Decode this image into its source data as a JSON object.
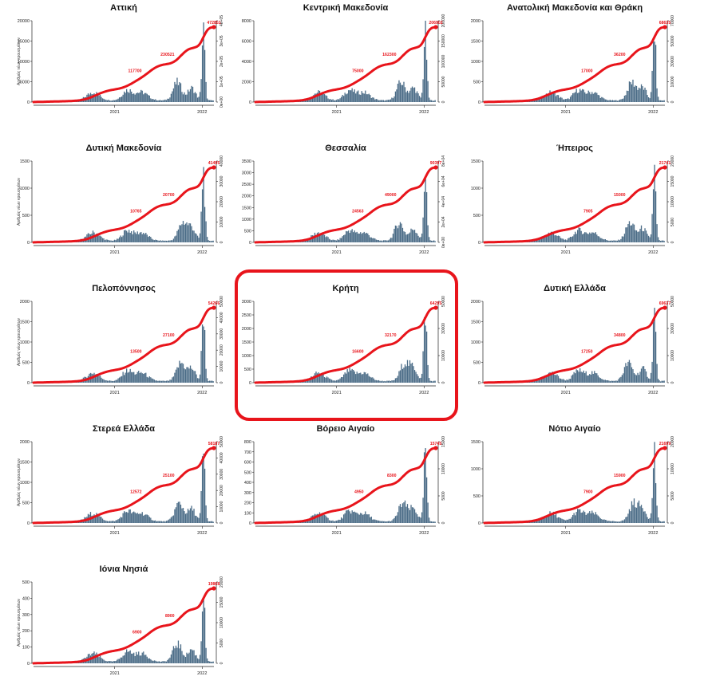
{
  "colors": {
    "cumulative_line": "#e8141b",
    "daily_bars": "#4b6c87",
    "highlight": "#e8141b",
    "axis": "#222222"
  },
  "highlighted_region": "Κρήτη",
  "chart_data": [
    {
      "type": "bar",
      "title": "Αττική",
      "ylabel": "Αριθμός νέων κρουσμάτων",
      "x_ticks": [
        "2021",
        "2022"
      ],
      "ylim_left": [
        0,
        20000
      ],
      "left_ticks": [
        "0",
        "5000",
        "10000",
        "15000",
        "20000"
      ],
      "right_ticks": [
        "0e+00",
        "1e+05",
        "2e+05",
        "3e+05",
        "4e+05"
      ],
      "annotations": [
        "117700",
        "230521",
        "472851"
      ],
      "final_cumulative": 472851
    },
    {
      "type": "bar",
      "title": "Κεντρική Μακεδονία",
      "ylabel": "",
      "x_ticks": [
        "2021",
        "2022"
      ],
      "ylim_left": [
        0,
        8000
      ],
      "left_ticks": [
        "0",
        "2000",
        "4000",
        "6000",
        "8000"
      ],
      "right_ticks": [
        "0",
        "50000",
        "100000",
        "150000",
        "200000"
      ],
      "annotations": [
        "75000",
        "162300",
        "206902"
      ],
      "final_cumulative": 206902
    },
    {
      "type": "bar",
      "title": "Ανατολική Μακεδονία και Θράκη",
      "ylabel": "",
      "x_ticks": [
        "2021",
        "2022"
      ],
      "ylim_left": [
        0,
        2000
      ],
      "left_ticks": [
        "0",
        "500",
        "1000",
        "1500",
        "2000"
      ],
      "right_ticks": [
        "0",
        "10000",
        "30000",
        "50000",
        "70000"
      ],
      "annotations": [
        "17000",
        "36200",
        "68635"
      ],
      "final_cumulative": 68635
    },
    {
      "type": "bar",
      "title": "Δυτική Μακεδονία",
      "ylabel": "Αριθμός νέων κρουσμάτων",
      "x_ticks": [
        "2021",
        "2022"
      ],
      "ylim_left": [
        0,
        1500
      ],
      "left_ticks": [
        "0",
        "500",
        "1000",
        "1500"
      ],
      "right_ticks": [
        "0",
        "10000",
        "20000",
        "30000",
        "40000"
      ],
      "annotations": [
        "10765",
        "20700",
        "41495"
      ],
      "final_cumulative": 41495
    },
    {
      "type": "bar",
      "title": "Θεσσαλία",
      "ylabel": "",
      "x_ticks": [
        "2021",
        "2022"
      ],
      "ylim_left": [
        0,
        3500
      ],
      "left_ticks": [
        "0",
        "500",
        "1000",
        "1500",
        "2000",
        "2500",
        "3000",
        "3500"
      ],
      "right_ticks": [
        "0e+00",
        "2e+04",
        "4e+04",
        "6e+04",
        "8e+04"
      ],
      "annotations": [
        "24563",
        "49000",
        "90397"
      ],
      "final_cumulative": 90397
    },
    {
      "type": "bar",
      "title": "Ήπειρος",
      "ylabel": "",
      "x_ticks": [
        "2021",
        "2022"
      ],
      "ylim_left": [
        0,
        1500
      ],
      "left_ticks": [
        "0",
        "500",
        "1000",
        "1500"
      ],
      "right_ticks": [
        "0",
        "5000",
        "10000",
        "15000",
        "20000"
      ],
      "annotations": [
        "7905",
        "15000",
        "21741"
      ],
      "final_cumulative": 21741
    },
    {
      "type": "bar",
      "title": "Πελοπόννησος",
      "ylabel": "Αριθμός νέων κρουσμάτων",
      "x_ticks": [
        "2021",
        "2022"
      ],
      "ylim_left": [
        0,
        2000
      ],
      "left_ticks": [
        "0",
        "500",
        "1000",
        "1500",
        "2000"
      ],
      "right_ticks": [
        "0",
        "10000",
        "20000",
        "30000",
        "40000",
        "50000"
      ],
      "annotations": [
        "13500",
        "27100",
        "54266"
      ],
      "final_cumulative": 54266
    },
    {
      "type": "bar",
      "title": "Κρήτη",
      "ylabel": "",
      "x_ticks": [
        "2021",
        "2022"
      ],
      "ylim_left": [
        0,
        3000
      ],
      "left_ticks": [
        "0",
        "500",
        "1000",
        "1500",
        "2000",
        "2500",
        "3000"
      ],
      "right_ticks": [
        "0",
        "10000",
        "30000",
        "50000"
      ],
      "annotations": [
        "16600",
        "32170",
        "64295"
      ],
      "final_cumulative": 64295
    },
    {
      "type": "bar",
      "title": "Δυτική Ελλάδα",
      "ylabel": "",
      "x_ticks": [
        "2021",
        "2022"
      ],
      "ylim_left": [
        0,
        2000
      ],
      "left_ticks": [
        "0",
        "500",
        "1000",
        "1500",
        "2000"
      ],
      "right_ticks": [
        "0",
        "10000",
        "30000",
        "50000"
      ],
      "annotations": [
        "17250",
        "34800",
        "69637"
      ],
      "final_cumulative": 69637
    },
    {
      "type": "bar",
      "title": "Στερεά Ελλάδα",
      "ylabel": "Αριθμός νέων κρουσμάτων",
      "x_ticks": [
        "2021",
        "2022"
      ],
      "ylim_left": [
        0,
        2000
      ],
      "left_ticks": [
        "0",
        "500",
        "1000",
        "1500",
        "2000"
      ],
      "right_ticks": [
        "0",
        "10000",
        "20000",
        "30000",
        "40000",
        "50000"
      ],
      "annotations": [
        "12572",
        "25100",
        "58187"
      ],
      "final_cumulative": 58187
    },
    {
      "type": "bar",
      "title": "Βόρειο Αιγαίο",
      "ylabel": "",
      "x_ticks": [
        "2021",
        "2022"
      ],
      "ylim_left": [
        0,
        800
      ],
      "left_ticks": [
        "0",
        "100",
        "200",
        "300",
        "400",
        "500",
        "600",
        "700",
        "800"
      ],
      "right_ticks": [
        "0",
        "5000",
        "10000",
        "15000"
      ],
      "annotations": [
        "4950",
        "8300",
        "15745"
      ],
      "final_cumulative": 15745
    },
    {
      "type": "bar",
      "title": "Νότιο Αιγαίο",
      "ylabel": "",
      "x_ticks": [
        "2021",
        "2022"
      ],
      "ylim_left": [
        0,
        1500
      ],
      "left_ticks": [
        "0",
        "500",
        "1000",
        "1500"
      ],
      "right_ticks": [
        "0",
        "5000",
        "10000",
        "20000"
      ],
      "annotations": [
        "7900",
        "15900",
        "21699"
      ],
      "final_cumulative": 21699
    },
    {
      "type": "bar",
      "title": "Ιόνια Νησιά",
      "ylabel": "Αριθμός νέων κρουσμάτων",
      "x_ticks": [
        "2021",
        "2022"
      ],
      "ylim_left": [
        0,
        500
      ],
      "left_ticks": [
        "0",
        "100",
        "200",
        "300",
        "400",
        "500"
      ],
      "right_ticks": [
        "0",
        "5000",
        "10000",
        "15000",
        "20000"
      ],
      "annotations": [
        "6900",
        "8900",
        "19868"
      ],
      "final_cumulative": 19868
    }
  ]
}
